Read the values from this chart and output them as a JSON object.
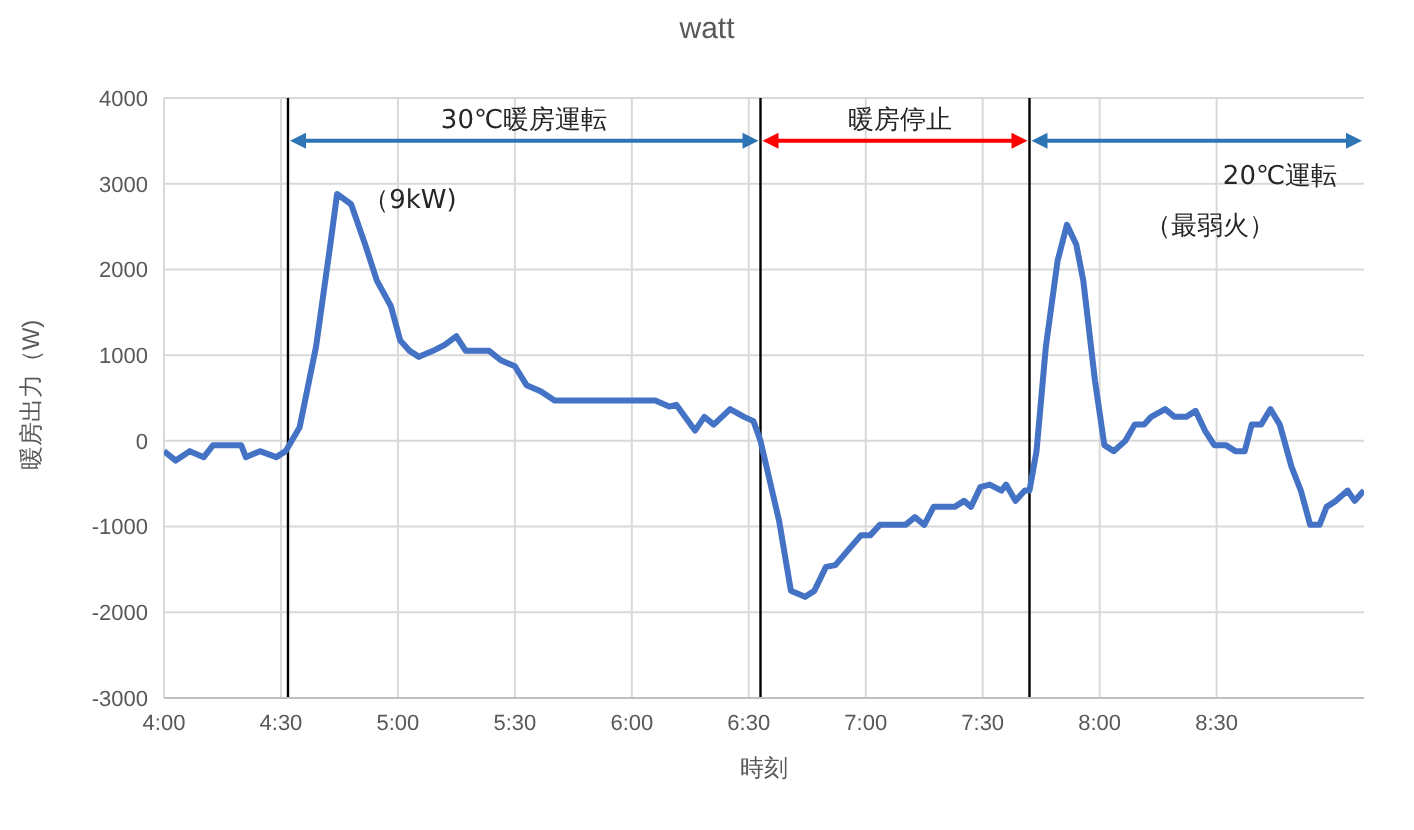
{
  "chart_data": {
    "type": "line",
    "title": "watt",
    "xlabel": "時刻",
    "ylabel": "暖房出力（W)",
    "x": [
      4.0,
      4.05,
      4.11,
      4.17,
      4.21,
      4.33,
      4.35,
      4.41,
      4.48,
      4.52,
      4.58,
      4.65,
      4.71,
      4.74,
      4.8,
      4.86,
      4.91,
      4.97,
      5.01,
      5.05,
      5.09,
      5.15,
      5.2,
      5.25,
      5.29,
      5.39,
      5.44,
      5.5,
      5.55,
      5.61,
      5.67,
      6.1,
      6.16,
      6.19,
      6.27,
      6.31,
      6.35,
      6.42,
      6.48,
      6.52,
      6.55,
      6.63,
      6.68,
      6.74,
      6.78,
      6.83,
      6.87,
      6.92,
      6.98,
      7.02,
      7.06,
      7.17,
      7.21,
      7.25,
      7.29,
      7.38,
      7.42,
      7.45,
      7.49,
      7.53,
      7.58,
      7.6,
      7.64,
      7.68,
      7.7,
      7.73,
      7.77,
      7.82,
      7.86,
      7.9,
      7.93,
      7.98,
      8.02,
      8.06,
      8.11,
      8.15,
      8.19,
      8.22,
      8.28,
      8.32,
      8.37,
      8.41,
      8.45,
      8.49,
      8.54,
      8.58,
      8.62,
      8.65,
      8.69,
      8.73,
      8.77,
      8.82,
      8.86,
      8.9,
      8.94,
      8.97,
      9.01,
      9.06,
      9.09,
      9.13
    ],
    "series": [
      {
        "color": "#4472c4",
        "values": [
          -120,
          -230,
          -120,
          -190,
          -50,
          -50,
          -190,
          -120,
          -190,
          -120,
          160,
          1100,
          2270,
          2880,
          2760,
          2290,
          1870,
          1570,
          1170,
          1050,
          980,
          1050,
          1120,
          1220,
          1050,
          1050,
          940,
          870,
          650,
          580,
          470,
          470,
          400,
          420,
          120,
          280,
          190,
          370,
          280,
          230,
          0,
          -940,
          -1750,
          -1820,
          -1750,
          -1470,
          -1450,
          -1290,
          -1100,
          -1100,
          -980,
          -980,
          -890,
          -980,
          -770,
          -770,
          -700,
          -770,
          -540,
          -510,
          -580,
          -510,
          -700,
          -580,
          -580,
          -120,
          1100,
          2100,
          2520,
          2290,
          1870,
          700,
          -50,
          -120,
          0,
          190,
          190,
          280,
          370,
          280,
          280,
          350,
          120,
          -50,
          -50,
          -120,
          -120,
          190,
          190,
          370,
          190,
          -300,
          -580,
          -980,
          -980,
          -770,
          -700,
          -580,
          -700,
          -580
        ]
      }
    ],
    "xlim": [
      4,
      9.13
    ],
    "xticks": [
      {
        "value": 4,
        "label": "4:00"
      },
      {
        "value": 4.5,
        "label": "4:30"
      },
      {
        "value": 5,
        "label": "5:00"
      },
      {
        "value": 5.5,
        "label": "5:30"
      },
      {
        "value": 6,
        "label": "6:00"
      },
      {
        "value": 6.5,
        "label": "6:30"
      },
      {
        "value": 7,
        "label": "7:00"
      },
      {
        "value": 7.5,
        "label": "7:30"
      },
      {
        "value": 8,
        "label": "8:00"
      },
      {
        "value": 8.5,
        "label": "8:30"
      }
    ],
    "ylim": [
      -3000,
      4000
    ],
    "yticks": [
      -3000,
      -2000,
      -1000,
      0,
      1000,
      2000,
      3000,
      4000
    ],
    "grid": true,
    "marker": "none",
    "line_style": "solid",
    "legend": false,
    "ref_lines": [
      {
        "axis": "x",
        "value": 4.53,
        "color": "#000000"
      },
      {
        "axis": "x",
        "value": 6.55,
        "color": "#000000"
      },
      {
        "axis": "x",
        "value": 7.7,
        "color": "#000000"
      }
    ],
    "annotations": [
      "30℃暖房運転",
      "（9kW)",
      "暖房停止",
      "20℃運転",
      "（最弱火）"
    ]
  }
}
